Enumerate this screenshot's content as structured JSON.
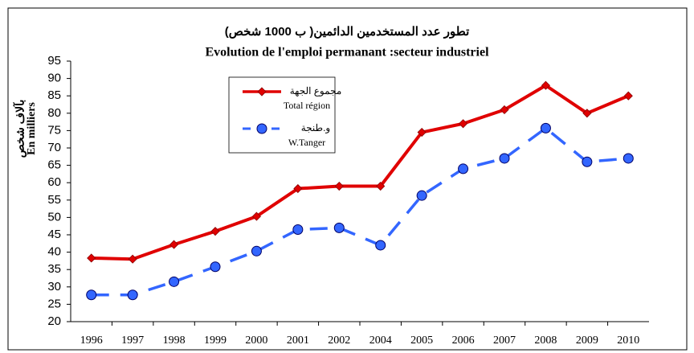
{
  "chart_data": {
    "type": "line",
    "title": "تطور عدد المستخدمين الدائمين( ب 1000 شخص)",
    "subtitle": "Evolution de l'emploi permanant :secteur industriel",
    "ylabel": "بآلاف شخص",
    "ylabel_fr": "En milliers",
    "categories": [
      "1996",
      "1997",
      "1998",
      "1999",
      "2000",
      "2001",
      "2002",
      "2004",
      "2005",
      "2006",
      "2007",
      "2008",
      "2009",
      "2010"
    ],
    "series": [
      {
        "name": "مجموع الجهة",
        "name_fr": "Total région",
        "color": "#e00000",
        "marker": "diamond",
        "dashed": false,
        "values": [
          38.3,
          38,
          42.2,
          46,
          50.3,
          58.3,
          59,
          59,
          74.5,
          77,
          81,
          88,
          80,
          85
        ]
      },
      {
        "name": "و.طنجة",
        "name_fr": "W.Tanger",
        "color": "#3366ff",
        "marker": "circle",
        "dashed": true,
        "values": [
          27.7,
          27.7,
          31.5,
          35.8,
          40.3,
          46.5,
          47,
          42,
          56.3,
          64,
          67,
          75.7,
          66,
          67
        ]
      }
    ],
    "ylim": [
      20,
      95
    ],
    "yticks": [
      20,
      25,
      30,
      35,
      40,
      45,
      50,
      55,
      60,
      65,
      70,
      75,
      80,
      85,
      90,
      95
    ],
    "grid": false
  }
}
